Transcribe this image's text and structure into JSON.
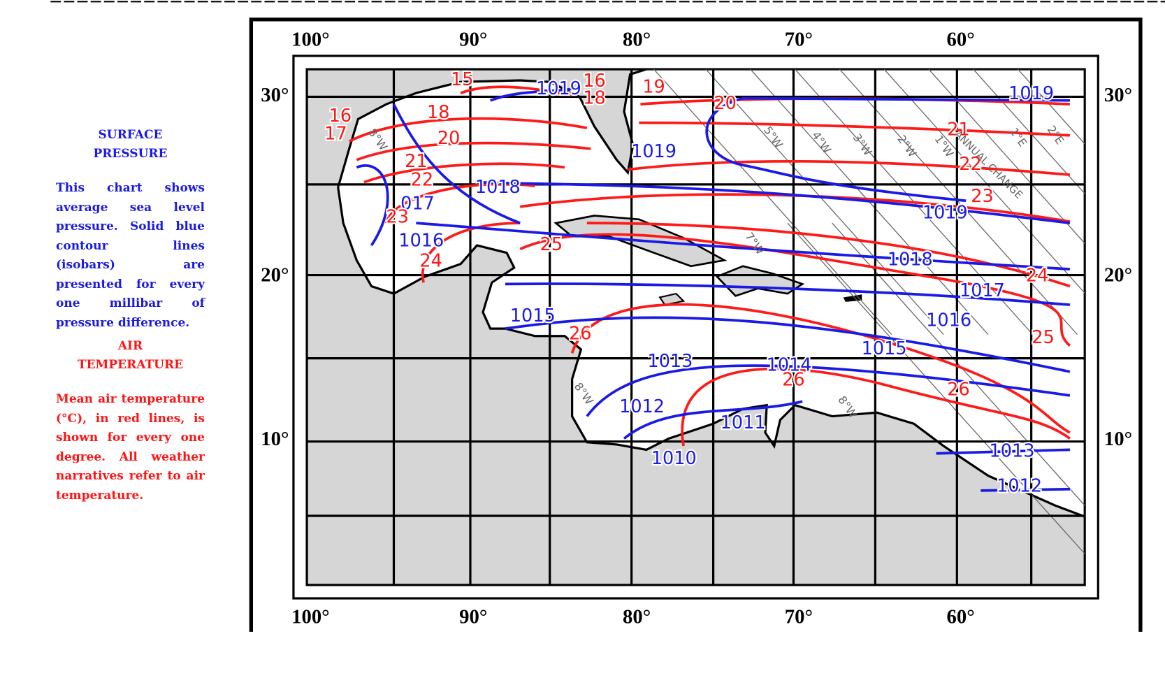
{
  "sidebar": {
    "pressure_title": "SURFACE PRESSURE",
    "pressure_text": "This chart shows average sea level pressure. Solid blue contour lines (isobars) are presented for every one millibar of pressure difference.",
    "temperature_title": "AIR TEMPERATURE",
    "temperature_text": "Mean air temperature (°C), in red lines, is shown for every one degree. All weather narratives refer to air temperature."
  },
  "map": {
    "longitude_labels": [
      "100°",
      "90°",
      "80°",
      "70°",
      "60°"
    ],
    "latitude_labels": [
      "30°",
      "20°",
      "10°"
    ],
    "isobar_labels": [
      "1019",
      "1019",
      "1019",
      "1018",
      "017",
      "1016",
      "1019",
      "1018",
      "1017",
      "1016",
      "1015",
      "1015",
      "1013",
      "1014",
      "1012",
      "1011",
      "1010",
      "1013",
      "1012"
    ],
    "isotherm_labels": [
      "15",
      "16",
      "18",
      "19",
      "16",
      "17",
      "18",
      "20",
      "21",
      "22",
      "23",
      "24",
      "25",
      "20",
      "21",
      "22",
      "23",
      "24",
      "25",
      "26",
      "26",
      "26"
    ],
    "variation_labels": [
      "8°W",
      "5°W",
      "4°W",
      "3°W",
      "2°W",
      "1°W",
      "1°E",
      "2°E",
      "7°W",
      "8°W",
      "8°W"
    ],
    "annual_change": "ANNUAL CHANGE"
  }
}
